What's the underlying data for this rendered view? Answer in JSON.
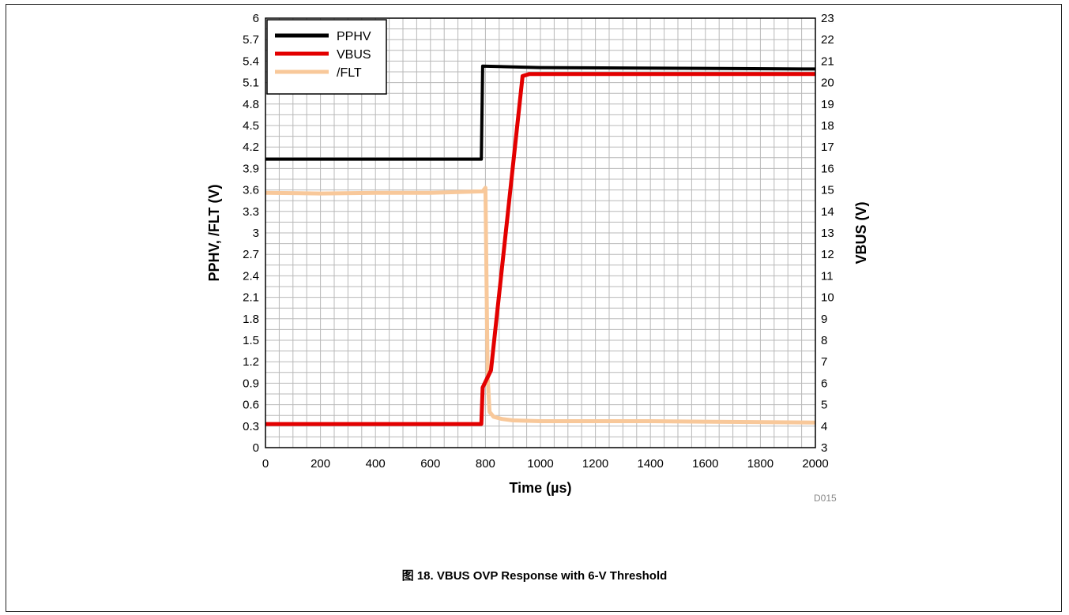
{
  "figure_code": "D015",
  "caption": "图 18. VBUS OVP Response with 6-V Threshold",
  "chart_data": {
    "type": "line",
    "xlabel": "Time (µs)",
    "ylabel_left": "PPHV, /FLT (V)",
    "ylabel_right": "VBUS (V)",
    "xlim": [
      0,
      2000
    ],
    "ylim_left": [
      0,
      6
    ],
    "ylim_right": [
      3,
      23
    ],
    "x_ticks": [
      0,
      200,
      400,
      600,
      800,
      1000,
      1200,
      1400,
      1600,
      1800,
      2000
    ],
    "y_left_ticks": [
      "0",
      "0.3",
      "0.6",
      "0.9",
      "1.2",
      "1.5",
      "1.8",
      "2.1",
      "2.4",
      "2.7",
      "3",
      "3.3",
      "3.6",
      "3.9",
      "4.2",
      "4.5",
      "4.8",
      "5.1",
      "5.4",
      "5.7",
      "6"
    ],
    "y_right_ticks": [
      "3",
      "4",
      "5",
      "6",
      "7",
      "8",
      "9",
      "10",
      "11",
      "12",
      "13",
      "14",
      "15",
      "16",
      "17",
      "18",
      "19",
      "20",
      "21",
      "22",
      "23"
    ],
    "grid": true,
    "legend_position": "top-left",
    "series": [
      {
        "name": "PPHV",
        "axis": "left",
        "color": "#000000",
        "x": [
          0,
          785,
          790,
          1000,
          2000
        ],
        "y": [
          4.03,
          4.03,
          5.33,
          5.31,
          5.29
        ]
      },
      {
        "name": "VBUS",
        "axis": "right",
        "color": "#e30000",
        "x": [
          0,
          785,
          790,
          820,
          935,
          960,
          1200,
          1600,
          2000
        ],
        "y": [
          4.1,
          4.1,
          5.8,
          6.6,
          20.3,
          20.4,
          20.4,
          20.4,
          20.4
        ]
      },
      {
        "name": "/FLT",
        "axis": "left",
        "color": "#f8c89a",
        "x": [
          0,
          200,
          400,
          600,
          790,
          800,
          808,
          815,
          830,
          860,
          900,
          1000,
          1400,
          2000
        ],
        "y": [
          3.56,
          3.55,
          3.56,
          3.56,
          3.58,
          3.63,
          1.0,
          0.5,
          0.43,
          0.4,
          0.38,
          0.37,
          0.37,
          0.35
        ]
      }
    ]
  }
}
